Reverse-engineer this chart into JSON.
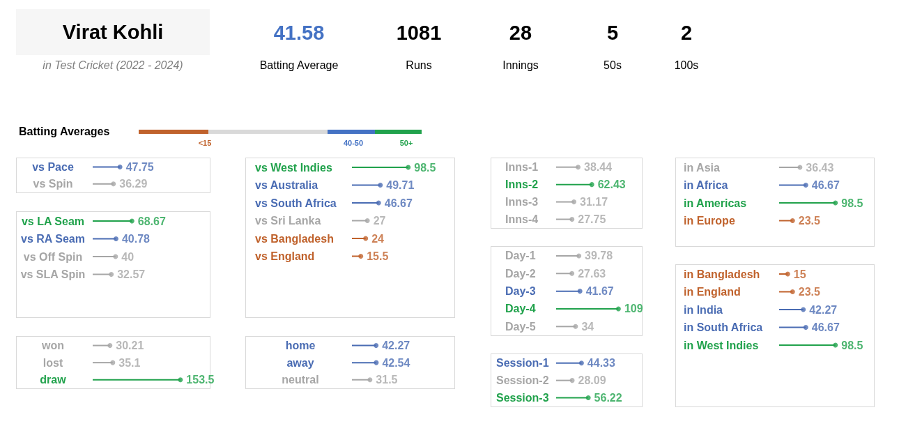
{
  "chart_data": [
    {
      "type": "other",
      "title": "Virat Kohli",
      "subtitle": "in Test Cricket (2022 - 2024)",
      "categories": [
        "Batting Average",
        "Runs",
        "Innings",
        "50s",
        "100s"
      ],
      "values": [
        41.58,
        1081,
        28,
        5,
        2
      ],
      "colors": [
        "#4472c4",
        "#000000",
        "#000000",
        "#000000",
        "#000000"
      ],
      "data_labels": true
    },
    {
      "type": "other",
      "title": "Batting Averages",
      "categories": [
        "<15",
        null,
        "40-50",
        "50+"
      ],
      "colors": [
        "#c0622c",
        "#d9d9d9",
        "#4472c4",
        "#21a24c"
      ]
    },
    {
      "type": "lollipop",
      "orientation": "horizontal",
      "categories": [
        "vs Pace",
        "vs Spin"
      ],
      "values": [
        47.75,
        36.29
      ],
      "colors": [
        "#4a6cb3",
        "#a6a6a6"
      ],
      "marker": "circle",
      "data_labels": true,
      "tick_labels": "y"
    },
    {
      "type": "lollipop",
      "orientation": "horizontal",
      "categories": [
        "vs LA Seam",
        "vs RA Seam",
        "vs Off Spin",
        "vs SLA Spin"
      ],
      "values": [
        68.67,
        40.78,
        40,
        32.57
      ],
      "colors": [
        "#21a24c",
        "#4a6cb3",
        "#a6a6a6",
        "#a6a6a6"
      ],
      "marker": "circle",
      "data_labels": true,
      "tick_labels": "y"
    },
    {
      "type": "lollipop",
      "orientation": "horizontal",
      "categories": [
        "won",
        "lost",
        "draw"
      ],
      "values": [
        30.21,
        35.1,
        153.5
      ],
      "colors": [
        "#a6a6a6",
        "#a6a6a6",
        "#21a24c"
      ],
      "marker": "circle",
      "data_labels": true,
      "tick_labels": "y"
    },
    {
      "type": "lollipop",
      "orientation": "horizontal",
      "categories": [
        "vs West Indies",
        "vs Australia",
        "vs South Africa",
        "vs Sri Lanka",
        "vs Bangladesh",
        "vs England"
      ],
      "values": [
        98.5,
        49.71,
        46.67,
        27,
        24,
        15.5
      ],
      "colors": [
        "#21a24c",
        "#4a6cb3",
        "#4a6cb3",
        "#a6a6a6",
        "#c0622c",
        "#c0622c"
      ],
      "marker": "circle",
      "data_labels": true,
      "tick_labels": "y"
    },
    {
      "type": "lollipop",
      "orientation": "horizontal",
      "categories": [
        "home",
        "away",
        "neutral"
      ],
      "values": [
        42.27,
        42.54,
        31.5
      ],
      "colors": [
        "#4a6cb3",
        "#4a6cb3",
        "#a6a6a6"
      ],
      "marker": "circle",
      "data_labels": true,
      "tick_labels": "y"
    },
    {
      "type": "lollipop",
      "orientation": "horizontal",
      "categories": [
        "Inns-1",
        "Inns-2",
        "Inns-3",
        "Inns-4"
      ],
      "values": [
        38.44,
        62.43,
        31.17,
        27.75
      ],
      "colors": [
        "#a6a6a6",
        "#21a24c",
        "#a6a6a6",
        "#a6a6a6"
      ],
      "marker": "circle",
      "data_labels": true,
      "tick_labels": "y"
    },
    {
      "type": "lollipop",
      "orientation": "horizontal",
      "categories": [
        "Day-1",
        "Day-2",
        "Day-3",
        "Day-4",
        "Day-5"
      ],
      "values": [
        39.78,
        27.63,
        41.67,
        109,
        34
      ],
      "colors": [
        "#a6a6a6",
        "#a6a6a6",
        "#4a6cb3",
        "#21a24c",
        "#a6a6a6"
      ],
      "marker": "circle",
      "data_labels": true,
      "tick_labels": "y"
    },
    {
      "type": "lollipop",
      "orientation": "horizontal",
      "categories": [
        "Session-1",
        "Session-2",
        "Session-3"
      ],
      "values": [
        44.33,
        28.09,
        56.22
      ],
      "colors": [
        "#4a6cb3",
        "#a6a6a6",
        "#21a24c"
      ],
      "marker": "circle",
      "data_labels": true,
      "tick_labels": "y"
    },
    {
      "type": "lollipop",
      "orientation": "horizontal",
      "categories": [
        "in Asia",
        "in Africa",
        "in Americas",
        "in Europe"
      ],
      "values": [
        36.43,
        46.67,
        98.5,
        23.5
      ],
      "colors": [
        "#a6a6a6",
        "#4a6cb3",
        "#21a24c",
        "#c0622c"
      ],
      "marker": "circle",
      "data_labels": true,
      "tick_labels": "y"
    },
    {
      "type": "lollipop",
      "orientation": "horizontal",
      "categories": [
        "in Bangladesh",
        "in England",
        "in India",
        "in South Africa",
        "in West Indies"
      ],
      "values": [
        15,
        23.5,
        42.27,
        46.67,
        98.5
      ],
      "colors": [
        "#c0622c",
        "#c0622c",
        "#4a6cb3",
        "#4a6cb3",
        "#21a24c"
      ],
      "marker": "circle",
      "data_labels": true,
      "tick_labels": "y"
    }
  ]
}
